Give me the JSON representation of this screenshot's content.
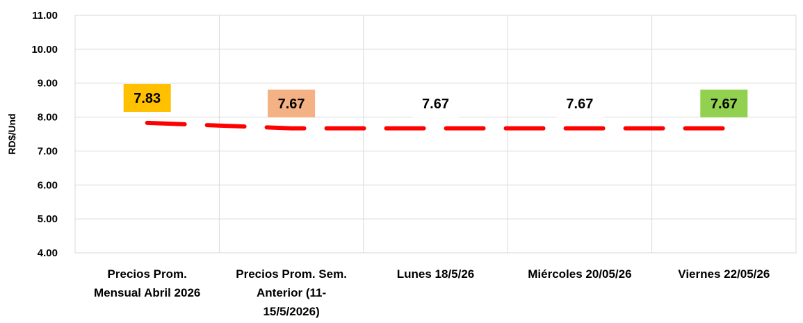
{
  "chart_data": {
    "type": "line",
    "categories": [
      [
        "Precios Prom.",
        "Mensual Abril 2026"
      ],
      [
        "Precios Prom. Sem.",
        "Anterior (11-",
        "15/5/2026)"
      ],
      [
        "Lunes 18/5/26"
      ],
      [
        "Miércoles 20/05/26"
      ],
      [
        "Viernes  22/05/26"
      ]
    ],
    "values": [
      7.83,
      7.67,
      7.67,
      7.67,
      7.67
    ],
    "data_labels": [
      "7.83",
      "7.67",
      "7.67",
      "7.67",
      "7.67"
    ],
    "label_colors": [
      "#FFC000",
      "#F4B183",
      "#FFFFFF",
      "#FFFFFF",
      "#92D050"
    ],
    "ylabel": "RD$/Und",
    "ylim": [
      4,
      11
    ],
    "yticks": [
      "4.00",
      "5.00",
      "6.00",
      "7.00",
      "8.00",
      "9.00",
      "10.00",
      "11.00"
    ],
    "line_color": "#FF0000",
    "line_style": "dashed",
    "grid": true
  }
}
